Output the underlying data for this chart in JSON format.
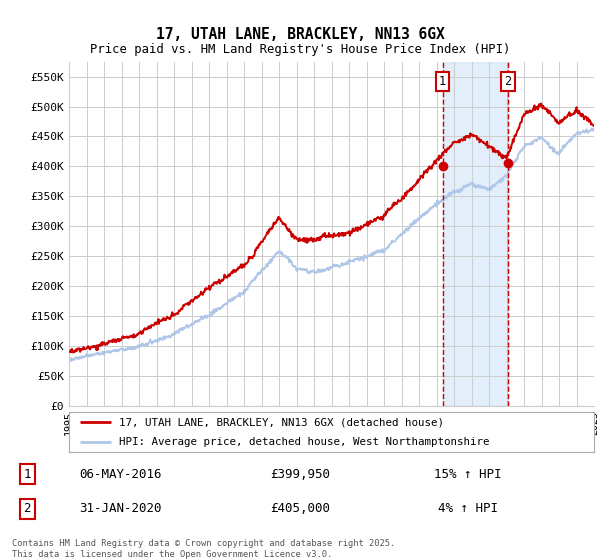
{
  "title": "17, UTAH LANE, BRACKLEY, NN13 6GX",
  "subtitle": "Price paid vs. HM Land Registry's House Price Index (HPI)",
  "ylim": [
    0,
    575000
  ],
  "yticks": [
    0,
    50000,
    100000,
    150000,
    200000,
    250000,
    300000,
    350000,
    400000,
    450000,
    500000,
    550000
  ],
  "hpi_color": "#aec6e8",
  "price_color": "#cc0000",
  "vline_color": "#cc0000",
  "vline_style": "--",
  "sale1_date": 2016.35,
  "sale1_price": 399950,
  "sale1_label": "1",
  "sale2_date": 2020.08,
  "sale2_price": 405000,
  "sale2_label": "2",
  "legend_line1": "17, UTAH LANE, BRACKLEY, NN13 6GX (detached house)",
  "legend_line2": "HPI: Average price, detached house, West Northamptonshire",
  "note1_label": "1",
  "note1_date": "06-MAY-2016",
  "note1_price": "£399,950",
  "note1_hpi": "15% ↑ HPI",
  "note2_label": "2",
  "note2_date": "31-JAN-2020",
  "note2_price": "£405,000",
  "note2_hpi": "4% ↑ HPI",
  "footer": "Contains HM Land Registry data © Crown copyright and database right 2025.\nThis data is licensed under the Open Government Licence v3.0.",
  "bg_color": "#ffffff",
  "grid_color": "#cccccc",
  "shade_color": "#d0e4f5"
}
